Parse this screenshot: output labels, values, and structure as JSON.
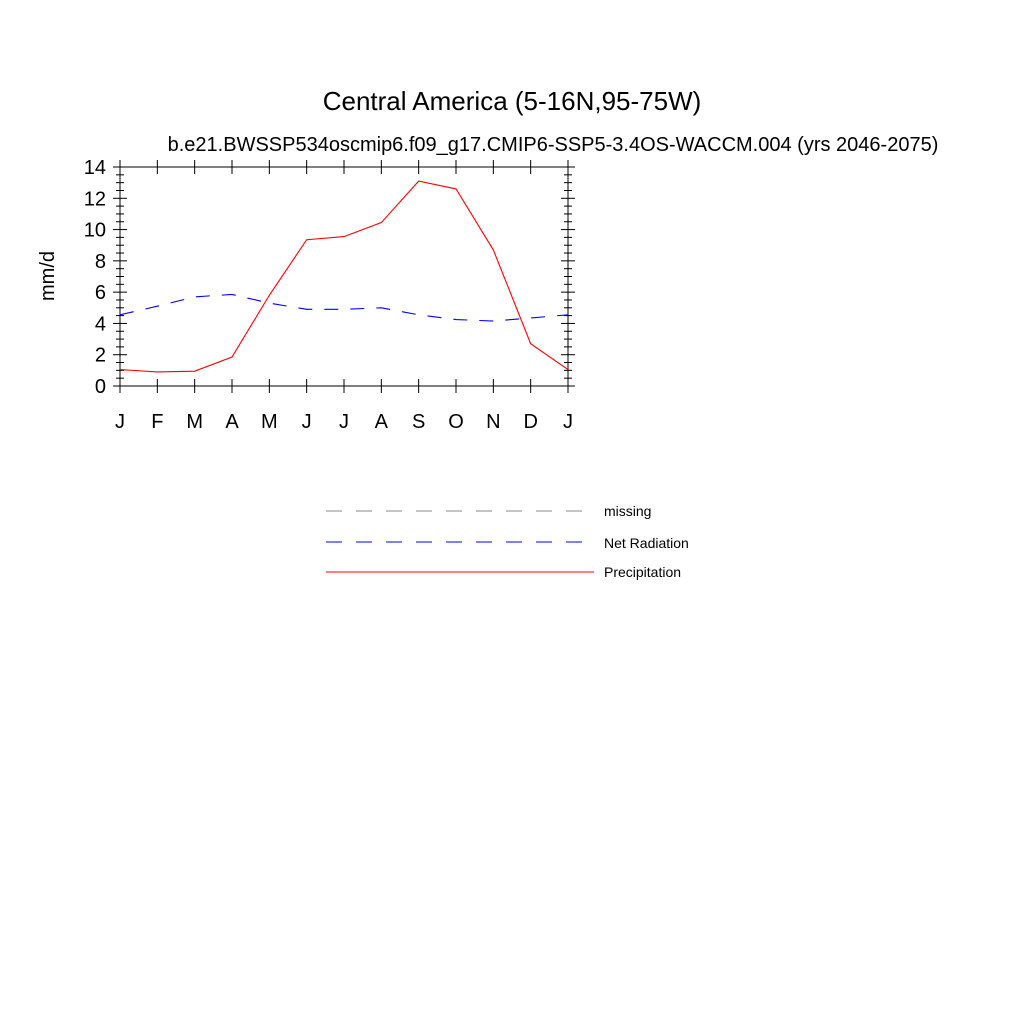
{
  "chart_data": {
    "type": "line",
    "title": "Central America (5-16N,95-75W)",
    "subtitle": "b.e21.BWSSP534oscmip6.f09_g17.CMIP6-SSP5-3.4OS-WACCM.004 (yrs 2046-2075)",
    "xlabel": "",
    "ylabel": "mm/d",
    "ylim": [
      0,
      14
    ],
    "yticks": [
      0,
      2,
      4,
      6,
      8,
      10,
      12,
      14
    ],
    "categories": [
      "J",
      "F",
      "M",
      "A",
      "M",
      "J",
      "J",
      "A",
      "S",
      "O",
      "N",
      "D",
      "J"
    ],
    "series": [
      {
        "name": "Net Radiation",
        "color": "#0000ff",
        "dash": "dashed",
        "values": [
          4.55,
          5.1,
          5.7,
          5.85,
          5.3,
          4.9,
          4.9,
          5.0,
          4.55,
          4.25,
          4.15,
          4.35,
          4.55
        ]
      },
      {
        "name": "Precipitation",
        "color": "#ff0000",
        "dash": "solid",
        "values": [
          1.05,
          0.9,
          0.95,
          1.85,
          5.8,
          9.35,
          9.55,
          10.45,
          13.1,
          12.6,
          8.7,
          2.7,
          1.05
        ]
      }
    ],
    "legend": {
      "placement": "below",
      "entries": [
        {
          "label": "missing",
          "color": "#a0a0a0",
          "dash": "dashed"
        },
        {
          "label": "Net Radiation",
          "color": "#0000ff",
          "dash": "dashed"
        },
        {
          "label": "Precipitation",
          "color": "#ff0000",
          "dash": "solid"
        }
      ]
    }
  }
}
